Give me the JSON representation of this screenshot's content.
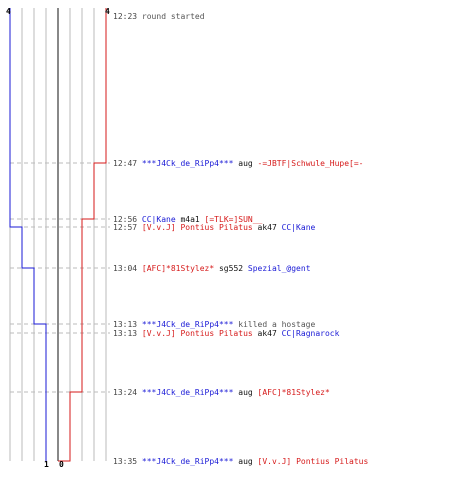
{
  "score_labels": {
    "blue_top": "4",
    "red_top": "4",
    "blue_bottom": "1",
    "red_bottom": "0"
  },
  "colors": {
    "blue_team": "#1a1ad6",
    "red_team": "#d61a1a",
    "grid": "#bbbbbb",
    "center_line": "#555555",
    "dashed_guide": "#bbbbbb"
  },
  "events": [
    {
      "time": "12:23",
      "segments": [
        {
          "text": "round started",
          "team": "grey"
        }
      ]
    },
    {
      "time": "12:47",
      "segments": [
        {
          "text": "***J4Ck_de_RiPp4***",
          "team": "blue"
        },
        {
          "text": " aug ",
          "team": "dark"
        },
        {
          "text": "-=JBTF|Schwule_Hupe[=-",
          "team": "red"
        }
      ]
    },
    {
      "time": "12:56",
      "segments": [
        {
          "text": "CC|Kane",
          "team": "blue"
        },
        {
          "text": " m4a1 ",
          "team": "dark"
        },
        {
          "text": "[=TLK=]SUN__",
          "team": "red"
        }
      ]
    },
    {
      "time": "12:57",
      "segments": [
        {
          "text": "[V.v.J] Pontius Pilatus",
          "team": "red"
        },
        {
          "text": " ak47 ",
          "team": "dark"
        },
        {
          "text": "CC|Kane",
          "team": "blue"
        }
      ]
    },
    {
      "time": "13:04",
      "segments": [
        {
          "text": "[AFC]*81Stylez*",
          "team": "red"
        },
        {
          "text": " sg552 ",
          "team": "dark"
        },
        {
          "text": "Spezial_@gent",
          "team": "blue"
        }
      ]
    },
    {
      "time": "13:13",
      "segments": [
        {
          "text": "***J4Ck_de_RiPp4***",
          "team": "blue"
        },
        {
          "text": " killed a hostage",
          "team": "grey"
        }
      ]
    },
    {
      "time": "13:13",
      "segments": [
        {
          "text": "[V.v.J] Pontius Pilatus",
          "team": "red"
        },
        {
          "text": " ak47 ",
          "team": "dark"
        },
        {
          "text": "CC|Ragnarock",
          "team": "blue"
        }
      ]
    },
    {
      "time": "13:24",
      "segments": [
        {
          "text": "***J4Ck_de_RiPp4***",
          "team": "blue"
        },
        {
          "text": " aug ",
          "team": "dark"
        },
        {
          "text": "[AFC]*81Stylez*",
          "team": "red"
        }
      ]
    },
    {
      "time": "13:35",
      "segments": [
        {
          "text": "***J4Ck_de_RiPp4***",
          "team": "blue"
        },
        {
          "text": " aug ",
          "team": "dark"
        },
        {
          "text": "[V.v.J] Pontius Pilatus",
          "team": "red"
        }
      ]
    }
  ]
}
